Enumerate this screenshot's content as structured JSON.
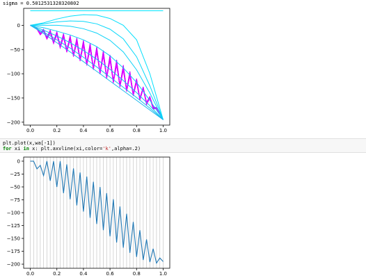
{
  "output_text": "sigma = 0.5012531328320802",
  "code": {
    "line1": "plt.plot(x,wa[-1])",
    "line2_kw1": "for",
    "line2_var": " xi ",
    "line2_kw2": "in",
    "line2_rest1": " x: plt.axvline(xi,color=",
    "line2_str": "'k'",
    "line2_rest2": ",alpha=.2)"
  },
  "chart_data": [
    {
      "type": "line",
      "title": "",
      "xlabel": "",
      "ylabel": "",
      "xlim": [
        -0.05,
        1.05
      ],
      "ylim": [
        -206,
        35
      ],
      "xticks": [
        "0.0",
        "0.2",
        "0.4",
        "0.6",
        "0.8",
        "1.0"
      ],
      "yticks": [
        "0",
        "−50",
        "−100",
        "−150",
        "−200"
      ],
      "colors": [
        "#00e5ff",
        "#e400ff"
      ],
      "series": [
        {
          "x": [
            0.0,
            1.0
          ],
          "values": [
            30,
            30
          ]
        },
        {
          "x": [
            0.0,
            0.1,
            0.2,
            0.3,
            0.4,
            0.5,
            0.6,
            0.7,
            0.8,
            0.9,
            1.0
          ],
          "values": [
            0,
            5,
            13,
            19,
            22,
            21,
            14,
            0,
            -30,
            -100,
            -195
          ]
        },
        {
          "x": [
            0.0,
            0.1,
            0.2,
            0.3,
            0.4,
            0.5,
            0.6,
            0.7,
            0.8,
            0.9,
            1.0
          ],
          "values": [
            0,
            3,
            7,
            9,
            8,
            3,
            -8,
            -28,
            -65,
            -125,
            -195
          ]
        },
        {
          "x": [
            0.0,
            0.1,
            0.2,
            0.3,
            0.4,
            0.5,
            0.6,
            0.7,
            0.8,
            0.9,
            1.0
          ],
          "values": [
            0,
            0,
            0,
            -2,
            -7,
            -16,
            -31,
            -55,
            -92,
            -140,
            -195
          ]
        },
        {
          "x": [
            0.0,
            0.1,
            0.2,
            0.3,
            0.4,
            0.5,
            0.6,
            0.7,
            0.8,
            0.9,
            1.0
          ],
          "values": [
            0,
            -5,
            -12,
            -20,
            -30,
            -44,
            -63,
            -88,
            -118,
            -155,
            -195
          ]
        },
        {
          "x": [
            0.0,
            0.1,
            0.2,
            0.3,
            0.4,
            0.5,
            0.6,
            0.7,
            0.8,
            0.9,
            1.0
          ],
          "values": [
            0,
            -10,
            -22,
            -36,
            -52,
            -70,
            -91,
            -114,
            -139,
            -166,
            -195
          ]
        },
        {
          "x": [
            0.0,
            0.1,
            0.2,
            0.3,
            0.4,
            0.5,
            0.6,
            0.7,
            0.8,
            0.9,
            1.0
          ],
          "values": [
            0,
            -14,
            -30,
            -47,
            -66,
            -86,
            -107,
            -128,
            -149,
            -171,
            -195
          ]
        },
        {
          "x": [
            0.0,
            0.1,
            0.2,
            0.3,
            0.4,
            0.5,
            0.6,
            0.7,
            0.8,
            0.9,
            1.0
          ],
          "values": [
            0,
            -17,
            -36,
            -55,
            -75,
            -95,
            -115,
            -135,
            -155,
            -175,
            -195
          ]
        }
      ],
      "zigzag_series": [
        {
          "x": [
            0.0,
            0.025,
            0.05,
            0.075,
            0.1,
            0.125,
            0.15,
            0.175,
            0.2,
            0.225,
            0.25,
            0.275,
            0.3,
            0.325,
            0.35,
            0.375,
            0.4,
            0.425,
            0.45,
            0.475,
            0.5,
            0.525,
            0.55,
            0.575,
            0.6,
            0.625,
            0.65,
            0.675,
            0.7,
            0.725,
            0.75,
            0.775,
            0.8,
            0.825,
            0.85,
            0.875,
            0.9,
            0.925,
            0.95,
            0.975,
            1.0
          ],
          "values": [
            0,
            -3,
            -6,
            -16,
            -8,
            -24,
            -10,
            -33,
            -13,
            -42,
            -17,
            -51,
            -21,
            -60,
            -26,
            -69,
            -31,
            -78,
            -37,
            -87,
            -44,
            -96,
            -52,
            -105,
            -61,
            -114,
            -71,
            -123,
            -82,
            -132,
            -95,
            -141,
            -110,
            -150,
            -127,
            -159,
            -147,
            -168,
            -170,
            -180,
            -195
          ]
        },
        {
          "x": [
            0.0,
            0.025,
            0.05,
            0.075,
            0.1,
            0.125,
            0.15,
            0.175,
            0.2,
            0.225,
            0.25,
            0.275,
            0.3,
            0.325,
            0.35,
            0.375,
            0.4,
            0.425,
            0.45,
            0.475,
            0.5,
            0.525,
            0.55,
            0.575,
            0.6,
            0.625,
            0.65,
            0.675,
            0.7,
            0.725,
            0.75,
            0.775,
            0.8,
            0.825,
            0.85,
            0.875,
            0.9,
            0.925,
            0.95,
            0.975,
            1.0
          ],
          "values": [
            0,
            -4,
            -8,
            -20,
            -12,
            -29,
            -16,
            -38,
            -20,
            -47,
            -25,
            -56,
            -30,
            -65,
            -36,
            -74,
            -42,
            -83,
            -49,
            -92,
            -56,
            -101,
            -64,
            -110,
            -73,
            -119,
            -83,
            -128,
            -93,
            -137,
            -105,
            -146,
            -118,
            -155,
            -132,
            -164,
            -150,
            -173,
            -172,
            -184,
            -195
          ]
        }
      ]
    },
    {
      "type": "line",
      "title": "",
      "xlabel": "",
      "ylabel": "",
      "xlim": [
        -0.05,
        1.05
      ],
      "ylim": [
        -208,
        8
      ],
      "xticks": [
        "0.0",
        "0.2",
        "0.4",
        "0.6",
        "0.8",
        "1.0"
      ],
      "yticks": [
        "0",
        "−25",
        "−50",
        "−75",
        "−100",
        "−125",
        "−150",
        "−175",
        "−200"
      ],
      "colors": [
        "#1f77b4",
        "#000000"
      ],
      "vlines_count": 41,
      "series": [
        {
          "x": [
            0.0,
            0.025,
            0.05,
            0.075,
            0.1,
            0.125,
            0.15,
            0.175,
            0.2,
            0.225,
            0.25,
            0.275,
            0.3,
            0.325,
            0.35,
            0.375,
            0.4,
            0.425,
            0.45,
            0.475,
            0.5,
            0.525,
            0.55,
            0.575,
            0.6,
            0.625,
            0.65,
            0.675,
            0.7,
            0.725,
            0.75,
            0.775,
            0.8,
            0.825,
            0.85,
            0.875,
            0.9,
            0.925,
            0.95,
            0.975,
            1.0
          ],
          "values": [
            0,
            0,
            -15,
            -8,
            -28,
            0,
            -38,
            0,
            -50,
            0,
            -62,
            -6,
            -74,
            -14,
            -86,
            -22,
            -98,
            -30,
            -110,
            -40,
            -122,
            -50,
            -134,
            -62,
            -146,
            -74,
            -158,
            -88,
            -168,
            -102,
            -178,
            -118,
            -186,
            -134,
            -192,
            -152,
            -196,
            -170,
            -198,
            -188,
            -195
          ]
        }
      ]
    }
  ]
}
